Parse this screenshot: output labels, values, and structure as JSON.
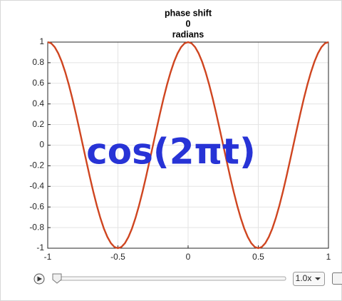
{
  "chart_data": {
    "type": "line",
    "title": [
      "phase shift",
      "0",
      "radians"
    ],
    "annotation": "cos(2πt)",
    "x": [
      -1,
      -0.975,
      -0.95,
      -0.925,
      -0.9,
      -0.875,
      -0.85,
      -0.825,
      -0.8,
      -0.775,
      -0.75,
      -0.725,
      -0.7,
      -0.675,
      -0.65,
      -0.625,
      -0.6,
      -0.575,
      -0.55,
      -0.525,
      -0.5,
      -0.475,
      -0.45,
      -0.425,
      -0.4,
      -0.375,
      -0.35,
      -0.325,
      -0.3,
      -0.275,
      -0.25,
      -0.225,
      -0.2,
      -0.175,
      -0.15,
      -0.125,
      -0.1,
      -0.075,
      -0.05,
      -0.025,
      0,
      0.025,
      0.05,
      0.075,
      0.1,
      0.125,
      0.15,
      0.175,
      0.2,
      0.225,
      0.25,
      0.275,
      0.3,
      0.325,
      0.35,
      0.375,
      0.4,
      0.425,
      0.45,
      0.475,
      0.5,
      0.525,
      0.55,
      0.575,
      0.6,
      0.625,
      0.65,
      0.675,
      0.7,
      0.725,
      0.75,
      0.775,
      0.8,
      0.825,
      0.85,
      0.875,
      0.9,
      0.925,
      0.95,
      0.975,
      1
    ],
    "series": [
      {
        "color": "#cf4520",
        "values": [
          1,
          0.988,
          0.951,
          0.891,
          0.809,
          0.707,
          0.588,
          0.454,
          0.309,
          0.156,
          0,
          -0.156,
          -0.309,
          -0.454,
          -0.588,
          -0.707,
          -0.809,
          -0.891,
          -0.951,
          -0.988,
          -1,
          -0.988,
          -0.951,
          -0.891,
          -0.809,
          -0.707,
          -0.588,
          -0.454,
          -0.309,
          -0.156,
          0,
          0.156,
          0.309,
          0.454,
          0.588,
          0.707,
          0.809,
          0.891,
          0.951,
          0.988,
          1,
          0.988,
          0.951,
          0.891,
          0.809,
          0.707,
          0.588,
          0.454,
          0.309,
          0.156,
          0,
          -0.156,
          -0.309,
          -0.454,
          -0.588,
          -0.707,
          -0.809,
          -0.891,
          -0.951,
          -0.988,
          -1,
          -0.988,
          -0.951,
          -0.891,
          -0.809,
          -0.707,
          -0.588,
          -0.454,
          -0.309,
          -0.156,
          0,
          0.156,
          0.309,
          0.454,
          0.588,
          0.707,
          0.809,
          0.891,
          0.951,
          0.988,
          1
        ]
      }
    ],
    "xlim": [
      -1,
      1
    ],
    "xticks": [
      -1,
      -0.5,
      0,
      0.5,
      1
    ],
    "ylim": [
      -1,
      1
    ],
    "yticks": [
      -1,
      -0.8,
      -0.6,
      -0.4,
      -0.2,
      0,
      0.2,
      0.4,
      0.6,
      0.8,
      1
    ],
    "grid": true
  },
  "player": {
    "speed": "1.0x"
  }
}
